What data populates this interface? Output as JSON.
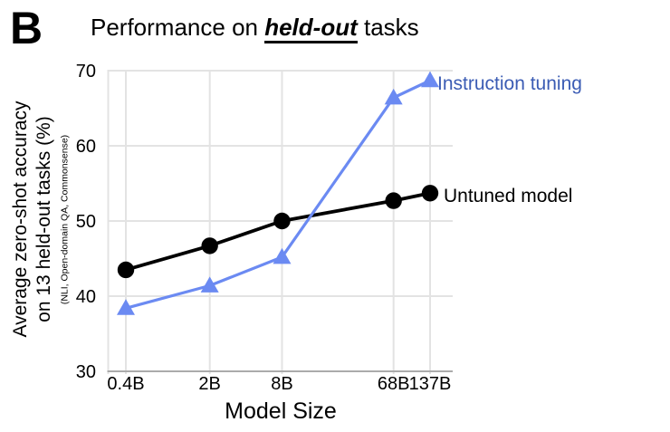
{
  "panel_label": "B",
  "header": {
    "title_prefix": "Performance on ",
    "title_emph": "held-out",
    "title_suffix": " tasks"
  },
  "chart_data": {
    "type": "line",
    "title": "Performance on held-out tasks",
    "categories": [
      "0.4B",
      "2B",
      "8B",
      "68B",
      "137B"
    ],
    "x_values_billions": [
      0.4,
      2,
      8,
      68,
      137
    ],
    "x_scale": "log",
    "xlabel": "Model Size",
    "ylabel_line1": "Average zero-shot accuracy",
    "ylabel_line2": "on 13 held-out tasks (%)",
    "ylabel_note": "(NLI, Open-domain QA, Commonsense)",
    "ylim": [
      30,
      70
    ],
    "y_ticks": [
      30,
      40,
      50,
      60,
      70
    ],
    "grid": true,
    "legend_position": "right-of-last-point",
    "colors": {
      "instruction_line": "#6b8af2",
      "instruction_label": "#3b5cb4",
      "untuned_line": "#000000",
      "gridline": "#e3e3e3",
      "axis_line": "#ababab"
    },
    "series": [
      {
        "name": "Instruction tuning",
        "marker": "triangle",
        "values": [
          38.4,
          41.4,
          45.2,
          66.4,
          68.7
        ]
      },
      {
        "name": "Untuned model",
        "marker": "circle",
        "values": [
          43.5,
          46.7,
          50.0,
          52.7,
          53.7
        ]
      }
    ]
  }
}
